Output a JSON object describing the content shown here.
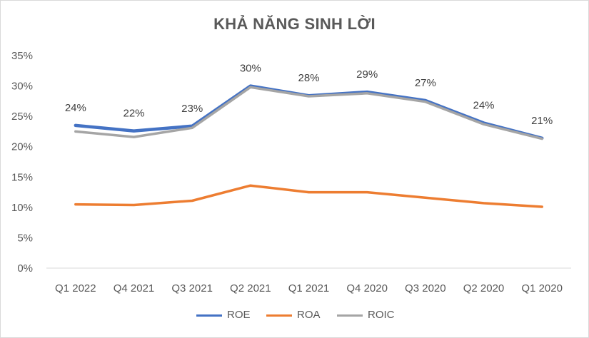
{
  "chart_data": {
    "type": "line",
    "title": "KHẢ NĂNG SINH LỜI",
    "categories": [
      "Q1 2022",
      "Q4 2021",
      "Q3 2021",
      "Q2 2021",
      "Q1 2021",
      "Q4 2020",
      "Q3 2020",
      "Q2 2020",
      "Q1 2020"
    ],
    "ylim": [
      0,
      35
    ],
    "yticks": [
      "0%",
      "5%",
      "10%",
      "15%",
      "20%",
      "25%",
      "30%",
      "35%"
    ],
    "grid": false,
    "legend_position": "bottom",
    "series": [
      {
        "name": "ROE",
        "color": "#4472c4",
        "values": [
          23.5,
          22.6,
          23.4,
          30.0,
          28.4,
          29.0,
          27.6,
          23.9,
          21.4
        ]
      },
      {
        "name": "ROA",
        "color": "#ed7d31",
        "values": [
          10.5,
          10.4,
          11.1,
          13.6,
          12.5,
          12.5,
          11.6,
          10.7,
          10.1
        ]
      },
      {
        "name": "ROIC",
        "color": "#a5a5a5",
        "values": [
          22.5,
          21.6,
          23.1,
          29.8,
          28.3,
          28.8,
          27.4,
          23.7,
          21.3
        ]
      }
    ],
    "data_labels": [
      "24%",
      "22%",
      "23%",
      "30%",
      "28%",
      "29%",
      "27%",
      "24%",
      "21%"
    ]
  }
}
